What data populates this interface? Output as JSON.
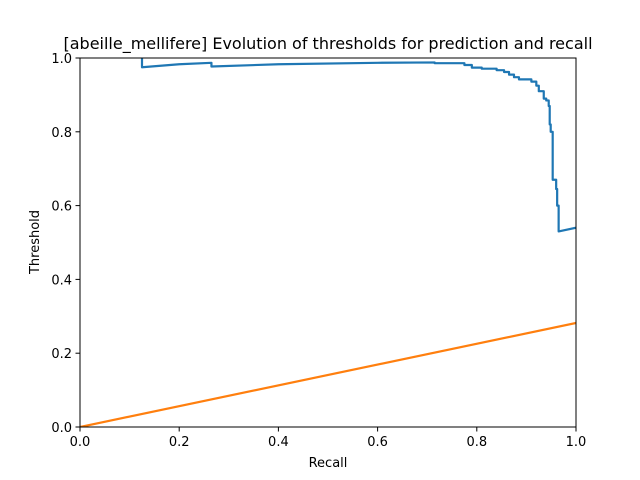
{
  "chart_data": {
    "type": "line",
    "title": "[abeille_mellifere] Evolution of thresholds for prediction and recall",
    "xlabel": "Recall",
    "ylabel": "Threshold",
    "xlim": [
      0,
      1
    ],
    "ylim": [
      0,
      1
    ],
    "grid": false,
    "legend": "none",
    "x_ticks": [
      "0.0",
      "0.2",
      "0.4",
      "0.6",
      "0.8",
      "1.0"
    ],
    "y_ticks": [
      "0.0",
      "0.2",
      "0.4",
      "0.6",
      "0.8",
      "1.0"
    ],
    "series": [
      {
        "color": "#1f77b4",
        "points": [
          [
            0.125,
            1.0
          ],
          [
            0.125,
            0.975
          ],
          [
            0.2,
            0.983
          ],
          [
            0.265,
            0.987
          ],
          [
            0.265,
            0.977
          ],
          [
            0.4,
            0.983
          ],
          [
            0.6,
            0.987
          ],
          [
            0.715,
            0.988
          ],
          [
            0.715,
            0.986
          ],
          [
            0.775,
            0.986
          ],
          [
            0.775,
            0.981
          ],
          [
            0.79,
            0.981
          ],
          [
            0.79,
            0.974
          ],
          [
            0.81,
            0.974
          ],
          [
            0.81,
            0.971
          ],
          [
            0.84,
            0.971
          ],
          [
            0.84,
            0.967
          ],
          [
            0.855,
            0.967
          ],
          [
            0.855,
            0.962
          ],
          [
            0.865,
            0.962
          ],
          [
            0.865,
            0.955
          ],
          [
            0.875,
            0.955
          ],
          [
            0.875,
            0.948
          ],
          [
            0.885,
            0.948
          ],
          [
            0.885,
            0.942
          ],
          [
            0.91,
            0.942
          ],
          [
            0.91,
            0.936
          ],
          [
            0.92,
            0.936
          ],
          [
            0.92,
            0.925
          ],
          [
            0.925,
            0.925
          ],
          [
            0.925,
            0.91
          ],
          [
            0.935,
            0.91
          ],
          [
            0.935,
            0.89
          ],
          [
            0.94,
            0.89
          ],
          [
            0.94,
            0.885
          ],
          [
            0.945,
            0.885
          ],
          [
            0.945,
            0.87
          ],
          [
            0.947,
            0.87
          ],
          [
            0.947,
            0.82
          ],
          [
            0.949,
            0.82
          ],
          [
            0.949,
            0.8
          ],
          [
            0.953,
            0.8
          ],
          [
            0.953,
            0.67
          ],
          [
            0.96,
            0.67
          ],
          [
            0.96,
            0.645
          ],
          [
            0.962,
            0.645
          ],
          [
            0.962,
            0.6
          ],
          [
            0.965,
            0.6
          ],
          [
            0.965,
            0.53
          ],
          [
            1.0,
            0.54
          ]
        ]
      },
      {
        "color": "#ff7f0e",
        "points": [
          [
            0.0,
            0.0
          ],
          [
            1.0,
            0.282
          ]
        ]
      }
    ]
  }
}
